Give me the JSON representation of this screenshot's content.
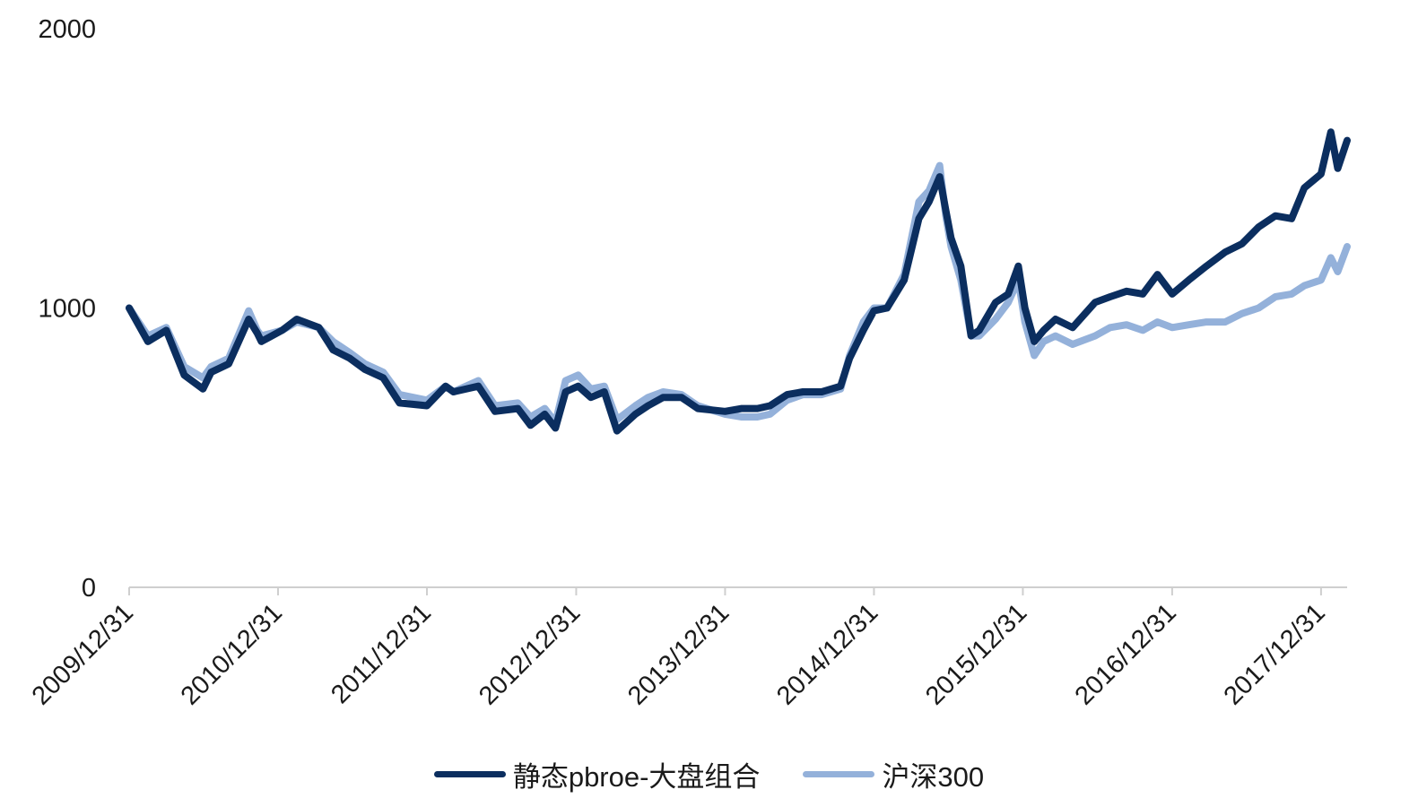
{
  "chart_data": {
    "type": "line",
    "title": "",
    "xlabel": "",
    "ylabel": "",
    "ylim": [
      0,
      2000
    ],
    "yticks": [
      0,
      1000,
      2000
    ],
    "ytick_labels": [
      "0",
      "1000",
      "2000"
    ],
    "xlim": [
      "2009/12/31",
      "2018/03/05"
    ],
    "xticks": [
      "2009/12/31",
      "2010/12/31",
      "2011/12/31",
      "2012/12/31",
      "2013/12/31",
      "2014/12/31",
      "2015/12/31",
      "2016/12/31",
      "2017/12/31"
    ],
    "grid": false,
    "legend_position": "bottom",
    "series": [
      {
        "name": "静态pbroe-大盘组合",
        "color": "#0b2e5f",
        "x": [
          "2009/12/31",
          "2010/02/15",
          "2010/04/01",
          "2010/05/15",
          "2010/06/30",
          "2010/07/20",
          "2010/09/01",
          "2010/10/20",
          "2010/11/10",
          "2010/11/20",
          "2011/01/10",
          "2011/02/15",
          "2011/04/10",
          "2011/05/15",
          "2011/06/25",
          "2011/08/01",
          "2011/09/15",
          "2011/10/25",
          "2011/12/31",
          "2012/02/15",
          "2012/03/05",
          "2012/05/05",
          "2012/06/15",
          "2012/08/10",
          "2012/09/10",
          "2012/10/15",
          "2012/11/10",
          "2012/12/05",
          "2013/01/05",
          "2013/02/05",
          "2013/03/10",
          "2013/04/10",
          "2013/05/25",
          "2013/06/25",
          "2013/08/01",
          "2013/09/15",
          "2013/10/25",
          "2013/12/31",
          "2014/02/10",
          "2014/03/20",
          "2014/04/20",
          "2014/06/01",
          "2014/07/10",
          "2014/08/25",
          "2014/10/10",
          "2014/11/01",
          "2014/12/05",
          "2014/12/31",
          "2015/02/01",
          "2015/03/15",
          "2015/04/20",
          "2015/05/15",
          "2015/06/10",
          "2015/06/25",
          "2015/07/08",
          "2015/08/01",
          "2015/08/26",
          "2015/09/15",
          "2015/10/25",
          "2015/11/25",
          "2015/12/20",
          "2016/01/05",
          "2016/01/28",
          "2016/02/20",
          "2016/03/20",
          "2016/05/01",
          "2016/06/25",
          "2016/08/01",
          "2016/09/10",
          "2016/10/20",
          "2016/11/25",
          "2016/12/31",
          "2017/02/10",
          "2017/03/25",
          "2017/05/10",
          "2017/06/20",
          "2017/07/31",
          "2017/09/10",
          "2017/10/20",
          "2017/11/20",
          "2017/12/31",
          "2018/01/24",
          "2018/02/10",
          "2018/03/05"
        ],
        "values": [
          1000,
          880,
          920,
          760,
          710,
          770,
          800,
          960,
          910,
          880,
          920,
          960,
          930,
          850,
          820,
          780,
          750,
          660,
          650,
          720,
          700,
          720,
          630,
          640,
          580,
          620,
          570,
          700,
          720,
          680,
          700,
          560,
          620,
          650,
          680,
          680,
          640,
          630,
          640,
          640,
          650,
          690,
          700,
          700,
          720,
          820,
          920,
          990,
          1000,
          1100,
          1320,
          1380,
          1470,
          1350,
          1250,
          1150,
          900,
          920,
          1020,
          1050,
          1150,
          1000,
          880,
          920,
          960,
          930,
          1020,
          1040,
          1060,
          1050,
          1120,
          1050,
          1100,
          1150,
          1200,
          1230,
          1290,
          1330,
          1320,
          1430,
          1480,
          1630,
          1500,
          1600
        ]
      },
      {
        "name": "沪深300",
        "color": "#94b1da",
        "x": [
          "2009/12/31",
          "2010/02/15",
          "2010/04/01",
          "2010/05/15",
          "2010/06/30",
          "2010/07/20",
          "2010/09/01",
          "2010/10/20",
          "2010/11/10",
          "2010/11/20",
          "2011/01/10",
          "2011/02/15",
          "2011/04/10",
          "2011/05/15",
          "2011/06/25",
          "2011/08/01",
          "2011/09/15",
          "2011/10/25",
          "2011/12/31",
          "2012/02/15",
          "2012/03/05",
          "2012/05/05",
          "2012/06/15",
          "2012/08/10",
          "2012/09/10",
          "2012/10/15",
          "2012/11/10",
          "2012/12/05",
          "2013/01/05",
          "2013/02/05",
          "2013/03/10",
          "2013/04/10",
          "2013/05/25",
          "2013/06/25",
          "2013/08/01",
          "2013/09/15",
          "2013/10/25",
          "2013/12/31",
          "2014/02/10",
          "2014/03/20",
          "2014/04/20",
          "2014/06/01",
          "2014/07/10",
          "2014/08/25",
          "2014/10/10",
          "2014/11/01",
          "2014/12/05",
          "2014/12/31",
          "2015/02/01",
          "2015/03/15",
          "2015/04/20",
          "2015/05/15",
          "2015/06/10",
          "2015/06/25",
          "2015/07/08",
          "2015/08/01",
          "2015/08/26",
          "2015/09/15",
          "2015/10/25",
          "2015/11/25",
          "2015/12/20",
          "2016/01/05",
          "2016/01/28",
          "2016/02/20",
          "2016/03/20",
          "2016/05/01",
          "2016/06/25",
          "2016/08/01",
          "2016/09/10",
          "2016/10/20",
          "2016/11/25",
          "2016/12/31",
          "2017/02/10",
          "2017/03/25",
          "2017/05/10",
          "2017/06/20",
          "2017/07/31",
          "2017/09/10",
          "2017/10/20",
          "2017/11/20",
          "2017/12/31",
          "2018/01/24",
          "2018/02/10",
          "2018/03/05"
        ],
        "values": [
          1000,
          900,
          930,
          790,
          750,
          790,
          820,
          990,
          920,
          900,
          920,
          950,
          930,
          880,
          840,
          800,
          770,
          690,
          670,
          720,
          700,
          740,
          650,
          660,
          610,
          640,
          590,
          740,
          760,
          710,
          720,
          600,
          650,
          680,
          700,
          690,
          650,
          620,
          610,
          610,
          620,
          670,
          690,
          690,
          710,
          830,
          950,
          1000,
          1000,
          1120,
          1380,
          1420,
          1510,
          1330,
          1220,
          1100,
          900,
          900,
          960,
          1020,
          1100,
          950,
          830,
          880,
          900,
          870,
          900,
          930,
          940,
          920,
          950,
          930,
          940,
          950,
          950,
          980,
          1000,
          1040,
          1050,
          1080,
          1100,
          1180,
          1130,
          1220
        ]
      }
    ]
  }
}
